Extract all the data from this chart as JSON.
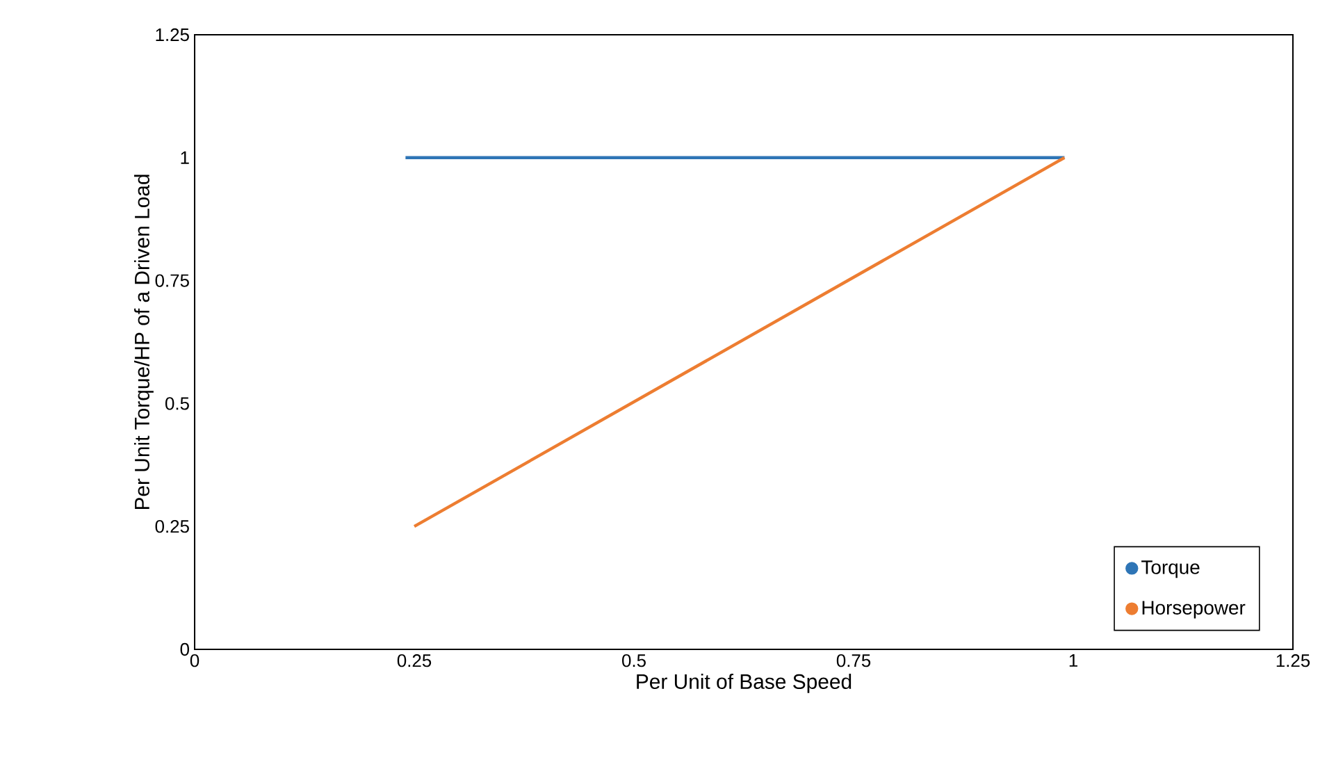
{
  "chart_data": {
    "type": "line",
    "xlabel": "Per Unit of Base Speed",
    "ylabel": "Per Unit Torque/HP of a Driven Load",
    "xlim": [
      0,
      1.25
    ],
    "ylim": [
      0,
      1.25
    ],
    "xticks": [
      0,
      0.25,
      0.5,
      0.75,
      1,
      1.25
    ],
    "yticks": [
      0,
      0.25,
      0.5,
      0.75,
      1,
      1.25
    ],
    "grid": false,
    "legend": "bottom right",
    "line_style": "solid",
    "series": [
      {
        "name": "Torque",
        "color": "#2e75b6",
        "x": [
          0.24,
          0.99
        ],
        "values": [
          1,
          1
        ]
      },
      {
        "name": "Horsepower",
        "color": "#ed7d31",
        "x": [
          0.25,
          0.99
        ],
        "values": [
          0.25,
          1
        ]
      }
    ]
  }
}
